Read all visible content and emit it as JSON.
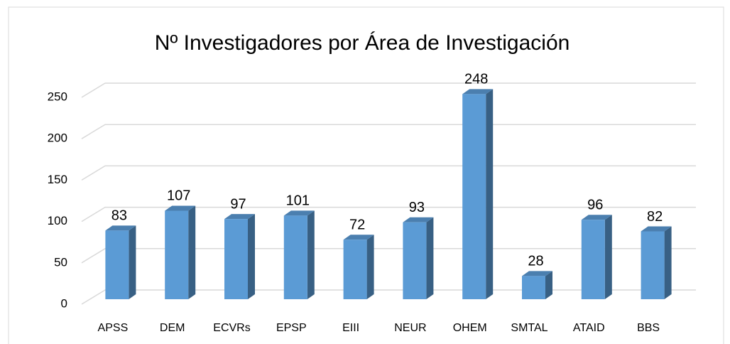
{
  "chart_data": {
    "type": "bar3d",
    "title": "Nº Investigadores por Área de Investigación",
    "categories": [
      "APSS",
      "DEM",
      "ECVRs",
      "EPSP",
      "EIII",
      "NEUR",
      "OHEM",
      "SMTAL",
      "ATAID",
      "BBS"
    ],
    "values": [
      83,
      107,
      97,
      101,
      72,
      93,
      248,
      28,
      96,
      82
    ],
    "color": "#5b9bd5",
    "ylim": [
      0,
      250
    ],
    "yticks": [
      0,
      50,
      100,
      150,
      200,
      250
    ],
    "grid": true
  }
}
